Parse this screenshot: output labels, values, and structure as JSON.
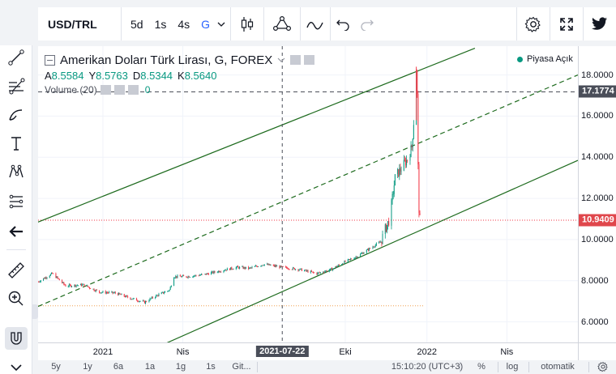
{
  "toolbar": {
    "symbol": "USD/TRL",
    "timeframes": [
      "5d",
      "1s",
      "4s",
      "G"
    ],
    "active_timeframe": "G"
  },
  "legend": {
    "title": "Amerikan Doları Türk Lirası, G, FOREX",
    "ohlc": [
      {
        "k": "A",
        "v": "8.5584"
      },
      {
        "k": "Y",
        "v": "8.5763"
      },
      {
        "k": "D",
        "v": "8.5344"
      },
      {
        "k": "K",
        "v": "8.5640"
      }
    ],
    "volume_label": "Volume (20)",
    "volume_value": "0",
    "market_status": "Piyasa Açık"
  },
  "price_scale": {
    "labels": [
      "18.0000",
      "16.0000",
      "14.0000",
      "12.0000",
      "10.0000",
      "8.0000",
      "6.0000"
    ],
    "crosshair_price": "17.1774",
    "last_price": "10.9409"
  },
  "time_scale": {
    "labels": [
      "2021",
      "Nis",
      "Eki",
      "2022",
      "Nis"
    ],
    "crosshair_date": "2021-07-22"
  },
  "bottom_bar": {
    "ranges": [
      "5y",
      "1y",
      "6a",
      "1a",
      "1g",
      "1s",
      "Git..."
    ],
    "clock": "15:10:20 (UTC+3)",
    "percent": "%",
    "log": "log",
    "auto": "otomatik"
  },
  "colors": {
    "up": "#089981",
    "down": "#f23645",
    "channel": "#1e6b1e",
    "last_price_tag": "#e0474c",
    "crosshair_tag": "#4a4e59",
    "accent": "#2962ff"
  },
  "chart_data": {
    "type": "candlestick",
    "symbol": "USD/TRL",
    "x_range": [
      "2020-10-20",
      "2022-06-20"
    ],
    "ylim": [
      5.0,
      19.4
    ],
    "close_series": [
      [
        "2020-10-20",
        7.95
      ],
      [
        "2020-11-05",
        8.35
      ],
      [
        "2020-11-20",
        7.75
      ],
      [
        "2020-12-10",
        7.8
      ],
      [
        "2020-12-28",
        7.45
      ],
      [
        "2021-01-15",
        7.4
      ],
      [
        "2021-02-01",
        7.15
      ],
      [
        "2021-02-17",
        6.95
      ],
      [
        "2021-03-01",
        7.25
      ],
      [
        "2021-03-17",
        7.55
      ],
      [
        "2021-03-22",
        8.2
      ],
      [
        "2021-04-05",
        8.2
      ],
      [
        "2021-04-25",
        8.3
      ],
      [
        "2021-05-15",
        8.5
      ],
      [
        "2021-06-01",
        8.65
      ],
      [
        "2021-06-15",
        8.6
      ],
      [
        "2021-07-01",
        8.8
      ],
      [
        "2021-07-22",
        8.65
      ],
      [
        "2021-08-10",
        8.55
      ],
      [
        "2021-08-30",
        8.35
      ],
      [
        "2021-09-15",
        8.55
      ],
      [
        "2021-09-30",
        8.9
      ],
      [
        "2021-10-15",
        9.2
      ],
      [
        "2021-10-30",
        9.6
      ],
      [
        "2021-11-10",
        9.9
      ],
      [
        "2021-11-15",
        10.5
      ],
      [
        "2021-11-20",
        11.0
      ],
      [
        "2021-11-23",
        12.0
      ],
      [
        "2021-11-26",
        13.0
      ],
      [
        "2021-12-05",
        13.6
      ],
      [
        "2021-12-10",
        13.9
      ],
      [
        "2021-12-15",
        14.5
      ],
      [
        "2021-12-18",
        16.3
      ],
      [
        "2021-12-20",
        18.3
      ],
      [
        "2021-12-21",
        17.0
      ],
      [
        "2021-12-22",
        13.5
      ],
      [
        "2021-12-23",
        11.5
      ],
      [
        "2021-12-24",
        10.94
      ]
    ],
    "crosshair": {
      "date": "2021-07-22",
      "price": 17.1774
    },
    "last_price": 10.9409,
    "channel_lines": [
      {
        "name": "upper",
        "style": "solid",
        "from": [
          "2020-10-20",
          10.85
        ],
        "to": [
          "2022-02-24",
          19.3
        ]
      },
      {
        "name": "middle",
        "style": "dashed",
        "from": [
          "2020-10-20",
          6.75
        ],
        "to": [
          "2022-06-20",
          18.0
        ]
      },
      {
        "name": "lower",
        "style": "solid",
        "from": [
          "2021-03-10",
          4.9
        ],
        "to": [
          "2022-06-20",
          13.85
        ]
      }
    ],
    "horizontal_levels": [
      {
        "price": 10.9409,
        "style": "dotted",
        "color": "#f23645"
      },
      {
        "price": 17.1774,
        "style": "dashed",
        "color": "#4a4e59"
      },
      {
        "price": 6.78,
        "style": "dotted",
        "color": "#f0a050"
      }
    ],
    "grid": true,
    "legend": "none"
  }
}
